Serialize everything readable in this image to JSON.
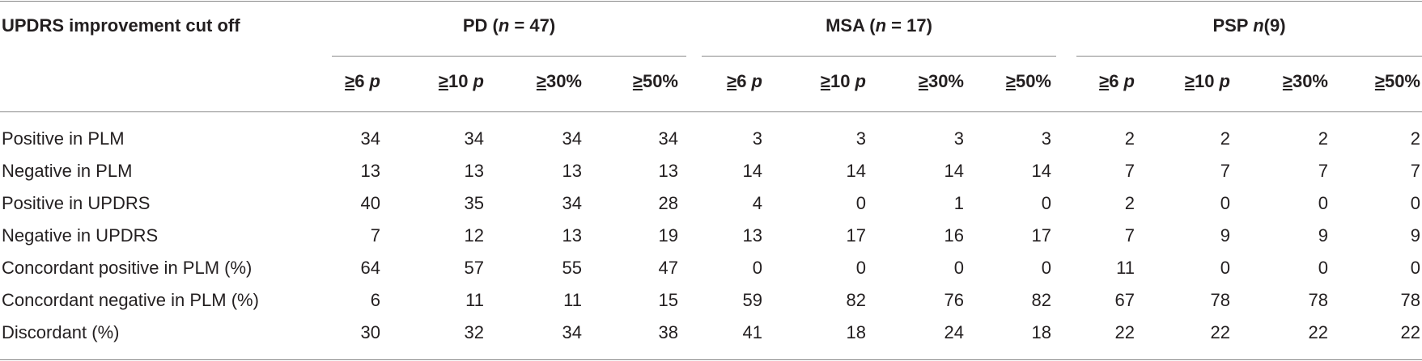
{
  "table": {
    "stub_header": "UPDRS improvement cut off",
    "groups": [
      {
        "name": "PD",
        "n_label_pre": "(",
        "n_var": "n",
        "n_label_eq": " = 47)"
      },
      {
        "name": "MSA",
        "n_label_pre": "(",
        "n_var": "n",
        "n_label_eq": " = 17)"
      },
      {
        "name": "PSP",
        "n_label_pre": " ",
        "n_var": "n",
        "n_label_eq": "(9)"
      }
    ],
    "subheaders": [
      {
        "sym": "≥",
        "val": "6 ",
        "unit": "p"
      },
      {
        "sym": "≥",
        "val": "10 ",
        "unit": "p"
      },
      {
        "sym": "≥",
        "val": "30%",
        "unit": ""
      },
      {
        "sym": "≥",
        "val": "50%",
        "unit": ""
      }
    ],
    "rows": [
      {
        "label": "Positive in PLM",
        "values": [
          "34",
          "34",
          "34",
          "34",
          "3",
          "3",
          "3",
          "3",
          "2",
          "2",
          "2",
          "2"
        ]
      },
      {
        "label": "Negative in PLM",
        "values": [
          "13",
          "13",
          "13",
          "13",
          "14",
          "14",
          "14",
          "14",
          "7",
          "7",
          "7",
          "7"
        ]
      },
      {
        "label": "Positive in UPDRS",
        "values": [
          "40",
          "35",
          "34",
          "28",
          "4",
          "0",
          "1",
          "0",
          "2",
          "0",
          "0",
          "0"
        ]
      },
      {
        "label": "Negative in UPDRS",
        "values": [
          "7",
          "12",
          "13",
          "19",
          "13",
          "17",
          "16",
          "17",
          "7",
          "9",
          "9",
          "9"
        ]
      },
      {
        "label": "Concordant positive in PLM (%)",
        "values": [
          "64",
          "57",
          "55",
          "47",
          "0",
          "0",
          "0",
          "0",
          "11",
          "0",
          "0",
          "0"
        ]
      },
      {
        "label": "Concordant negative in PLM (%)",
        "values": [
          "6",
          "11",
          "11",
          "15",
          "59",
          "82",
          "76",
          "82",
          "67",
          "78",
          "78",
          "78"
        ]
      },
      {
        "label": "Discordant (%)",
        "values": [
          "30",
          "32",
          "34",
          "38",
          "41",
          "18",
          "24",
          "18",
          "22",
          "22",
          "22",
          "22"
        ]
      }
    ]
  }
}
